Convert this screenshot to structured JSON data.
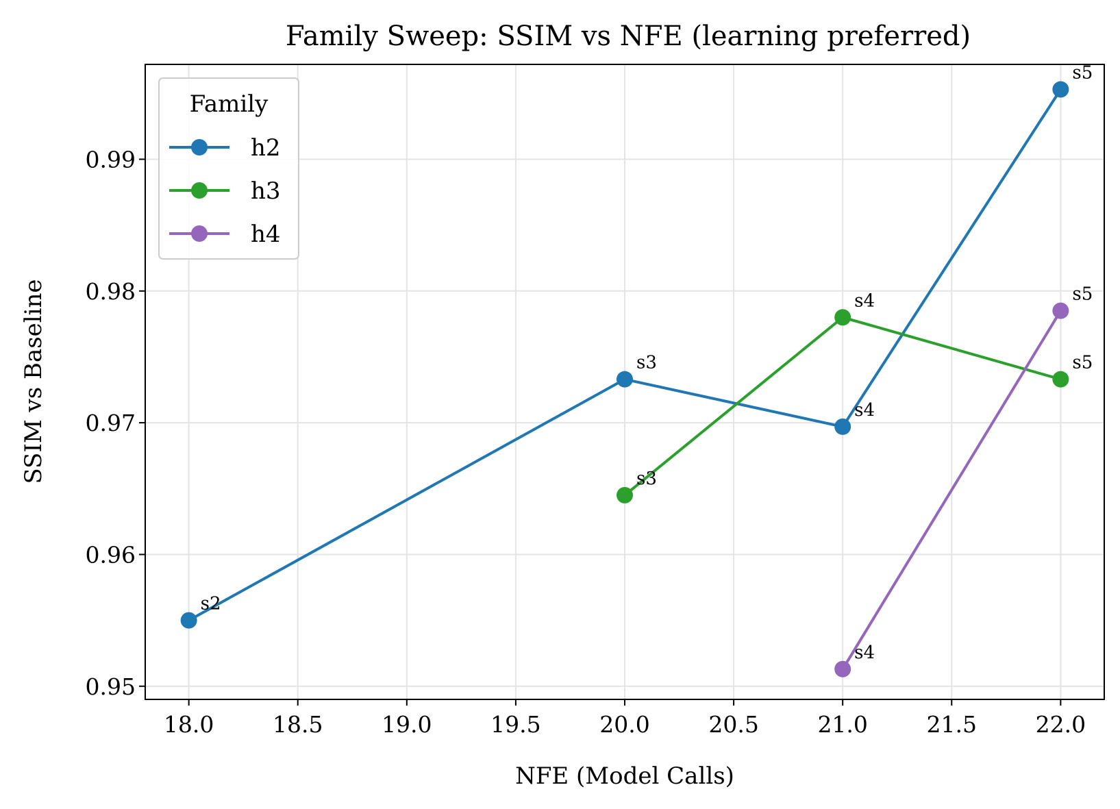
{
  "chart_data": {
    "type": "line",
    "title": "Family Sweep: SSIM vs NFE (learning preferred)",
    "xlabel": "NFE (Model Calls)",
    "ylabel": "SSIM vs Baseline",
    "xlim": [
      17.8,
      22.2
    ],
    "ylim": [
      0.949,
      0.9972
    ],
    "xticks": [
      "18.0",
      "18.5",
      "19.0",
      "19.5",
      "20.0",
      "20.5",
      "21.0",
      "21.5",
      "22.0"
    ],
    "xtick_values": [
      18.0,
      18.5,
      19.0,
      19.5,
      20.0,
      20.5,
      21.0,
      21.5,
      22.0
    ],
    "yticks": [
      "0.95",
      "0.96",
      "0.97",
      "0.98",
      "0.99"
    ],
    "ytick_values": [
      0.95,
      0.96,
      0.97,
      0.98,
      0.99
    ],
    "grid": true,
    "legend": {
      "title": "Family",
      "placement": "upper-left"
    },
    "series": [
      {
        "name": "h2",
        "color": "#1f77b4",
        "x": [
          18,
          20,
          21,
          22
        ],
        "y": [
          0.955,
          0.9733,
          0.9697,
          0.9953
        ],
        "labels": [
          "s2",
          "s3",
          "s4",
          "s5"
        ]
      },
      {
        "name": "h3",
        "color": "#2ca02c",
        "x": [
          20,
          21,
          22
        ],
        "y": [
          0.9645,
          0.978,
          0.9733
        ],
        "labels": [
          "s3",
          "s4",
          "s5"
        ]
      },
      {
        "name": "h4",
        "color": "#9467bd",
        "x": [
          21,
          22
        ],
        "y": [
          0.9513,
          0.9785
        ],
        "labels": [
          "s4",
          "s5"
        ]
      }
    ]
  }
}
